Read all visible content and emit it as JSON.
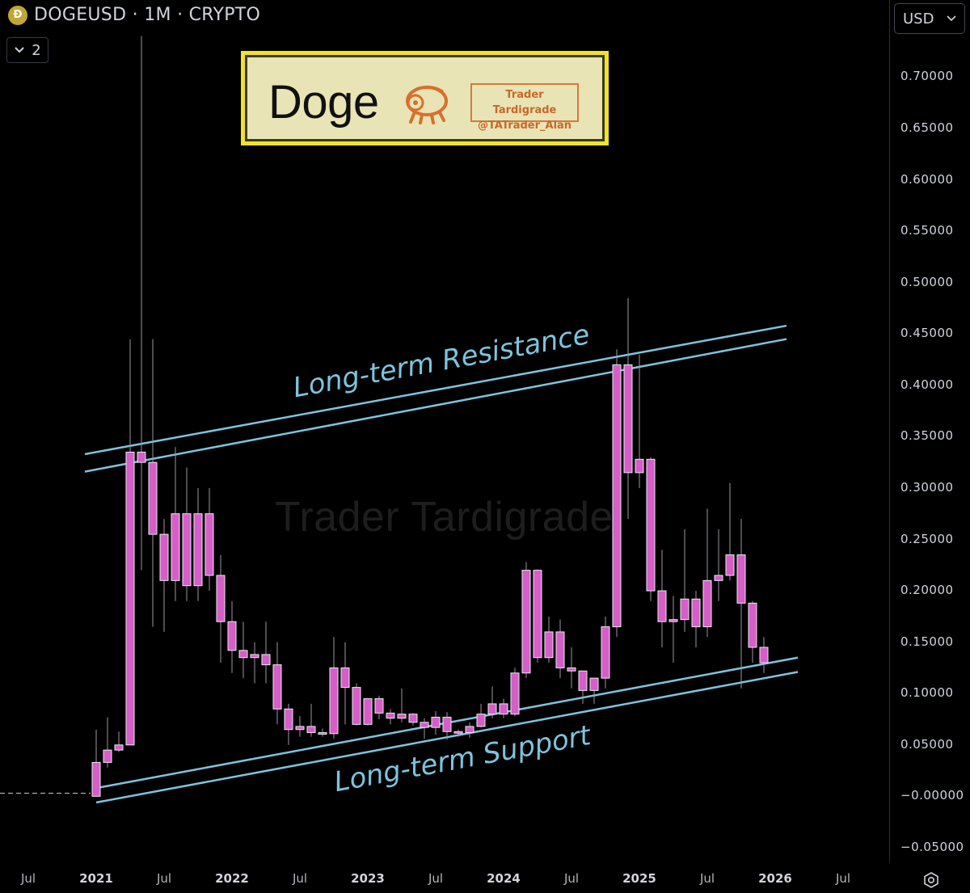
{
  "header": {
    "coin_icon": "dogecoin-coin-icon",
    "symbol_text": "DOGEUSD · 1M · CRYPTO",
    "collapse_count": "2"
  },
  "currency": {
    "label": "USD"
  },
  "logo": {
    "title": "Doge",
    "author_name": "Trader Tardigrade",
    "author_handle": "@TATrader_Alan"
  },
  "watermark": "Trader Tardigrade",
  "colors": {
    "background": "#000000",
    "candle_body": "#d65ec8",
    "candle_border": "#e9e9f0",
    "wick": "#9a9aa0",
    "trendline": "#7cc4de",
    "logo_frame": "#f1e22a"
  },
  "chart_data": {
    "type": "candlestick",
    "title": "DOGEUSD · 1M · CRYPTO",
    "xlabel": "",
    "ylabel": "",
    "x_axis": [
      "Jul",
      "2021",
      "Jul",
      "2022",
      "Jul",
      "2023",
      "Jul",
      "2024",
      "Jul",
      "2025",
      "Jul",
      "2026",
      "Jul"
    ],
    "y_axis": [
      "0.70000",
      "0.65000",
      "0.60000",
      "0.55000",
      "0.50000",
      "0.45000",
      "0.40000",
      "0.35000",
      "0.30000",
      "0.25000",
      "0.20000",
      "0.15000",
      "0.10000",
      "0.05000",
      "−0.00000",
      "−0.05000"
    ],
    "ylim": [
      -0.065,
      0.775
    ],
    "grid": false,
    "start": "2020-08",
    "candles": [
      {
        "date": "2020-08",
        "open": 0.0033,
        "high": 0.0033,
        "low": 0.0032,
        "close": 0.0032
      },
      {
        "date": "2020-09",
        "open": 0.0032,
        "high": 0.0033,
        "low": 0.0031,
        "close": 0.0031
      },
      {
        "date": "2020-10",
        "open": 0.0031,
        "high": 0.0032,
        "low": 0.0031,
        "close": 0.0031
      },
      {
        "date": "2020-11",
        "open": 0.0031,
        "high": 0.0032,
        "low": 0.0031,
        "close": 0.0032
      },
      {
        "date": "2020-12",
        "open": 0.0032,
        "high": 0.0033,
        "low": 0.0031,
        "close": 0.0031
      },
      {
        "date": "2021-01",
        "open": 0.0,
        "high": 0.065,
        "low": 0.0,
        "close": 0.033
      },
      {
        "date": "2021-02",
        "open": 0.033,
        "high": 0.077,
        "low": 0.028,
        "close": 0.045
      },
      {
        "date": "2021-03",
        "open": 0.045,
        "high": 0.063,
        "low": 0.043,
        "close": 0.05
      },
      {
        "date": "2021-04",
        "open": 0.05,
        "high": 0.445,
        "low": 0.05,
        "close": 0.335
      },
      {
        "date": "2021-05",
        "open": 0.335,
        "high": 0.74,
        "low": 0.22,
        "close": 0.325
      },
      {
        "date": "2021-06",
        "open": 0.325,
        "high": 0.445,
        "low": 0.165,
        "close": 0.255
      },
      {
        "date": "2021-07",
        "open": 0.255,
        "high": 0.27,
        "low": 0.16,
        "close": 0.21
      },
      {
        "date": "2021-08",
        "open": 0.21,
        "high": 0.34,
        "low": 0.19,
        "close": 0.275
      },
      {
        "date": "2021-09",
        "open": 0.275,
        "high": 0.32,
        "low": 0.19,
        "close": 0.205
      },
      {
        "date": "2021-10",
        "open": 0.205,
        "high": 0.3,
        "low": 0.19,
        "close": 0.275
      },
      {
        "date": "2021-11",
        "open": 0.275,
        "high": 0.3,
        "low": 0.2,
        "close": 0.215
      },
      {
        "date": "2021-12",
        "open": 0.215,
        "high": 0.235,
        "low": 0.13,
        "close": 0.17
      },
      {
        "date": "2022-01",
        "open": 0.17,
        "high": 0.19,
        "low": 0.12,
        "close": 0.142
      },
      {
        "date": "2022-02",
        "open": 0.142,
        "high": 0.17,
        "low": 0.115,
        "close": 0.135
      },
      {
        "date": "2022-03",
        "open": 0.135,
        "high": 0.15,
        "low": 0.11,
        "close": 0.138
      },
      {
        "date": "2022-04",
        "open": 0.138,
        "high": 0.17,
        "low": 0.11,
        "close": 0.128
      },
      {
        "date": "2022-05",
        "open": 0.128,
        "high": 0.15,
        "low": 0.07,
        "close": 0.085
      },
      {
        "date": "2022-06",
        "open": 0.085,
        "high": 0.09,
        "low": 0.05,
        "close": 0.065
      },
      {
        "date": "2022-07",
        "open": 0.065,
        "high": 0.078,
        "low": 0.058,
        "close": 0.068
      },
      {
        "date": "2022-08",
        "open": 0.068,
        "high": 0.09,
        "low": 0.058,
        "close": 0.062
      },
      {
        "date": "2022-09",
        "open": 0.062,
        "high": 0.066,
        "low": 0.058,
        "close": 0.061
      },
      {
        "date": "2022-10",
        "open": 0.061,
        "high": 0.155,
        "low": 0.056,
        "close": 0.125
      },
      {
        "date": "2022-11",
        "open": 0.125,
        "high": 0.15,
        "low": 0.07,
        "close": 0.106
      },
      {
        "date": "2022-12",
        "open": 0.106,
        "high": 0.11,
        "low": 0.069,
        "close": 0.07
      },
      {
        "date": "2023-01",
        "open": 0.07,
        "high": 0.095,
        "low": 0.069,
        "close": 0.095
      },
      {
        "date": "2023-02",
        "open": 0.095,
        "high": 0.098,
        "low": 0.075,
        "close": 0.081
      },
      {
        "date": "2023-03",
        "open": 0.081,
        "high": 0.085,
        "low": 0.07,
        "close": 0.076
      },
      {
        "date": "2023-04",
        "open": 0.076,
        "high": 0.105,
        "low": 0.072,
        "close": 0.08
      },
      {
        "date": "2023-05",
        "open": 0.08,
        "high": 0.081,
        "low": 0.069,
        "close": 0.072
      },
      {
        "date": "2023-06",
        "open": 0.072,
        "high": 0.076,
        "low": 0.056,
        "close": 0.067
      },
      {
        "date": "2023-07",
        "open": 0.067,
        "high": 0.083,
        "low": 0.06,
        "close": 0.077
      },
      {
        "date": "2023-08",
        "open": 0.077,
        "high": 0.082,
        "low": 0.055,
        "close": 0.063
      },
      {
        "date": "2023-09",
        "open": 0.063,
        "high": 0.065,
        "low": 0.058,
        "close": 0.062
      },
      {
        "date": "2023-10",
        "open": 0.062,
        "high": 0.072,
        "low": 0.057,
        "close": 0.068
      },
      {
        "date": "2023-11",
        "open": 0.068,
        "high": 0.09,
        "low": 0.067,
        "close": 0.08
      },
      {
        "date": "2023-12",
        "open": 0.08,
        "high": 0.107,
        "low": 0.076,
        "close": 0.09
      },
      {
        "date": "2024-01",
        "open": 0.09,
        "high": 0.095,
        "low": 0.076,
        "close": 0.08
      },
      {
        "date": "2024-02",
        "open": 0.08,
        "high": 0.125,
        "low": 0.078,
        "close": 0.12
      },
      {
        "date": "2024-03",
        "open": 0.12,
        "high": 0.228,
        "low": 0.115,
        "close": 0.22
      },
      {
        "date": "2024-04",
        "open": 0.22,
        "high": 0.221,
        "low": 0.13,
        "close": 0.135
      },
      {
        "date": "2024-05",
        "open": 0.135,
        "high": 0.175,
        "low": 0.13,
        "close": 0.16
      },
      {
        "date": "2024-06",
        "open": 0.16,
        "high": 0.172,
        "low": 0.115,
        "close": 0.125
      },
      {
        "date": "2024-07",
        "open": 0.125,
        "high": 0.145,
        "low": 0.105,
        "close": 0.122
      },
      {
        "date": "2024-08",
        "open": 0.122,
        "high": 0.122,
        "low": 0.09,
        "close": 0.103
      },
      {
        "date": "2024-09",
        "open": 0.103,
        "high": 0.115,
        "low": 0.09,
        "close": 0.115
      },
      {
        "date": "2024-10",
        "open": 0.115,
        "high": 0.175,
        "low": 0.105,
        "close": 0.165
      },
      {
        "date": "2024-11",
        "open": 0.165,
        "high": 0.435,
        "low": 0.155,
        "close": 0.42
      },
      {
        "date": "2024-12",
        "open": 0.42,
        "high": 0.485,
        "low": 0.27,
        "close": 0.315
      },
      {
        "date": "2025-01",
        "open": 0.315,
        "high": 0.43,
        "low": 0.3,
        "close": 0.328
      },
      {
        "date": "2025-02",
        "open": 0.328,
        "high": 0.33,
        "low": 0.19,
        "close": 0.2
      },
      {
        "date": "2025-03",
        "open": 0.2,
        "high": 0.24,
        "low": 0.145,
        "close": 0.17
      },
      {
        "date": "2025-04",
        "open": 0.17,
        "high": 0.195,
        "low": 0.13,
        "close": 0.172
      },
      {
        "date": "2025-05",
        "open": 0.172,
        "high": 0.26,
        "low": 0.16,
        "close": 0.192
      },
      {
        "date": "2025-06",
        "open": 0.192,
        "high": 0.2,
        "low": 0.145,
        "close": 0.165
      },
      {
        "date": "2025-07",
        "open": 0.165,
        "high": 0.28,
        "low": 0.155,
        "close": 0.21
      },
      {
        "date": "2025-08",
        "open": 0.21,
        "high": 0.26,
        "low": 0.19,
        "close": 0.215
      },
      {
        "date": "2025-09",
        "open": 0.215,
        "high": 0.305,
        "low": 0.21,
        "close": 0.235
      },
      {
        "date": "2025-10",
        "open": 0.235,
        "high": 0.27,
        "low": 0.105,
        "close": 0.188
      },
      {
        "date": "2025-11",
        "open": 0.188,
        "high": 0.19,
        "low": 0.13,
        "close": 0.145
      },
      {
        "date": "2025-12",
        "open": 0.145,
        "high": 0.155,
        "low": 0.12,
        "close": 0.13
      }
    ],
    "trendlines": [
      {
        "label": "Long-term Resistance",
        "points": [
          [
            "2020-12",
            0.333
          ],
          [
            "2026-02",
            0.458
          ]
        ]
      },
      {
        "label": "",
        "points": [
          [
            "2020-12",
            0.316
          ],
          [
            "2026-02",
            0.445
          ]
        ]
      },
      {
        "label": "Long-term Support",
        "points": [
          [
            "2021-01",
            0.008
          ],
          [
            "2026-03",
            0.135
          ]
        ]
      },
      {
        "label": "",
        "points": [
          [
            "2021-01",
            -0.006
          ],
          [
            "2026-03",
            0.121
          ]
        ]
      }
    ]
  }
}
